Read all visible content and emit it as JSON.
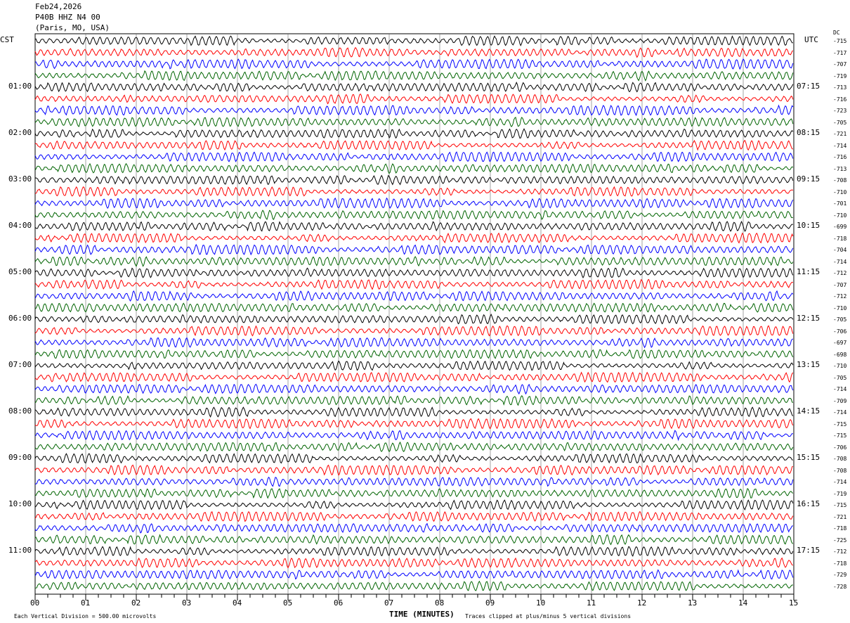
{
  "header": {
    "date": "Feb24,2026",
    "station": "P40B HHZ N4 00",
    "location": "(Paris, MO, USA)"
  },
  "left_tz": "CST",
  "right_tz": "UTC",
  "dc_label": "DC",
  "footer": {
    "scale": "Each Vertical Division =  500.00 microvolts",
    "xlabel": "TIME (MINUTES)",
    "clip_note": "Traces clipped at plus/minus 5 vertical divisions"
  },
  "chart_data": {
    "type": "line",
    "title": "",
    "xlabel": "TIME (MINUTES)",
    "xlim": [
      0,
      15
    ],
    "x_ticks": [
      "00",
      "01",
      "02",
      "03",
      "04",
      "05",
      "06",
      "07",
      "08",
      "09",
      "10",
      "11",
      "12",
      "13",
      "14",
      "15"
    ],
    "trace_colors": [
      "#000000",
      "#ff0000",
      "#0000ff",
      "#006400"
    ],
    "left_hour_labels": [
      "01:00",
      "02:00",
      "03:00",
      "04:00",
      "05:00",
      "06:00",
      "07:00",
      "08:00",
      "09:00",
      "10:00",
      "11:00"
    ],
    "right_hour_labels": [
      "07:15",
      "08:15",
      "09:15",
      "10:15",
      "11:15",
      "12:15",
      "13:15",
      "14:15",
      "15:15",
      "16:15",
      "17:15"
    ],
    "dc_offsets": [
      -715,
      -717,
      -707,
      -719,
      -713,
      -716,
      -723,
      -705,
      -721,
      -714,
      -716,
      -713,
      -708,
      -710,
      -701,
      -710,
      -699,
      -718,
      -704,
      -714,
      -712,
      -707,
      -712,
      -710,
      -705,
      -706,
      -697,
      -698,
      -710,
      -705,
      -714,
      -709,
      -714,
      -715,
      -715,
      -706,
      -708,
      -708,
      -714,
      -719,
      -715,
      -721,
      -718,
      -725,
      -712,
      -718,
      -729,
      -728
    ],
    "grid": true
  }
}
